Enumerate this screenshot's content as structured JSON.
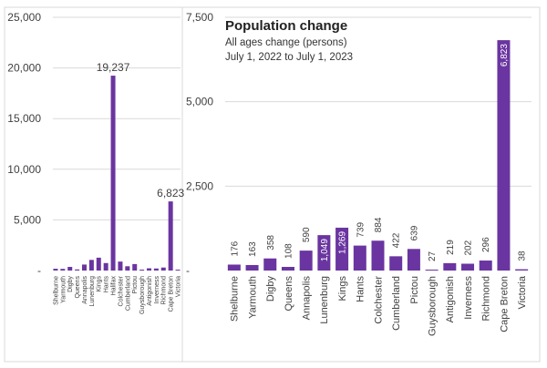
{
  "colors": {
    "bar": "#6a35a0",
    "grid": "#d9d9d9",
    "text": "#404040",
    "border": "#d9d9d9"
  },
  "chart_data": [
    {
      "type": "bar",
      "title": "",
      "categories": [
        "Shelburne",
        "Yarmouth",
        "Digby",
        "Queens",
        "Annapolis",
        "Lunenburg",
        "Kings",
        "Hants",
        "Halifax",
        "Colchester",
        "Cumberland",
        "Pictou",
        "Guysborough",
        "Antigonish",
        "Inverness",
        "Richmond",
        "Cape Breton",
        "Victoria"
      ],
      "values": [
        176,
        163,
        358,
        108,
        590,
        1049,
        1269,
        739,
        19237,
        884,
        422,
        639,
        27,
        219,
        202,
        296,
        6823,
        38
      ],
      "data_labels": {
        "Halifax": "19,237",
        "Cape Breton": "6,823"
      },
      "ylim": [
        0,
        25000
      ],
      "yticks": [
        0,
        5000,
        10000,
        15000,
        20000,
        25000
      ],
      "ytick_labels": [
        "-",
        "5,000",
        "10,000",
        "15,000",
        "20,000",
        "25,000"
      ],
      "grid": true
    },
    {
      "type": "bar",
      "title": "Population change",
      "subtitle": [
        "All ages change (persons)",
        "July 1, 2022 to July 1, 2023"
      ],
      "categories": [
        "Shelburne",
        "Yarmouth",
        "Digby",
        "Queens",
        "Annapolis",
        "Lunenburg",
        "Kings",
        "Hants",
        "Colchester",
        "Cumberland",
        "Pictou",
        "Guysborough",
        "Antigonish",
        "Inverness",
        "Richmond",
        "Cape Breton",
        "Victoria"
      ],
      "values": [
        176,
        163,
        358,
        108,
        590,
        1049,
        1269,
        739,
        884,
        422,
        639,
        27,
        219,
        202,
        296,
        6823,
        38
      ],
      "value_labels": [
        "176",
        "163",
        "358",
        "108",
        "590",
        "1,049",
        "1,269",
        "739",
        "884",
        "422",
        "639",
        "27",
        "219",
        "202",
        "296",
        "6,823",
        "38"
      ],
      "ylim": [
        0,
        7500
      ],
      "yticks": [
        0,
        2500,
        5000,
        7500
      ],
      "ytick_labels": [
        "-",
        "2,500",
        "5,000",
        "7,500"
      ],
      "grid": true
    }
  ]
}
